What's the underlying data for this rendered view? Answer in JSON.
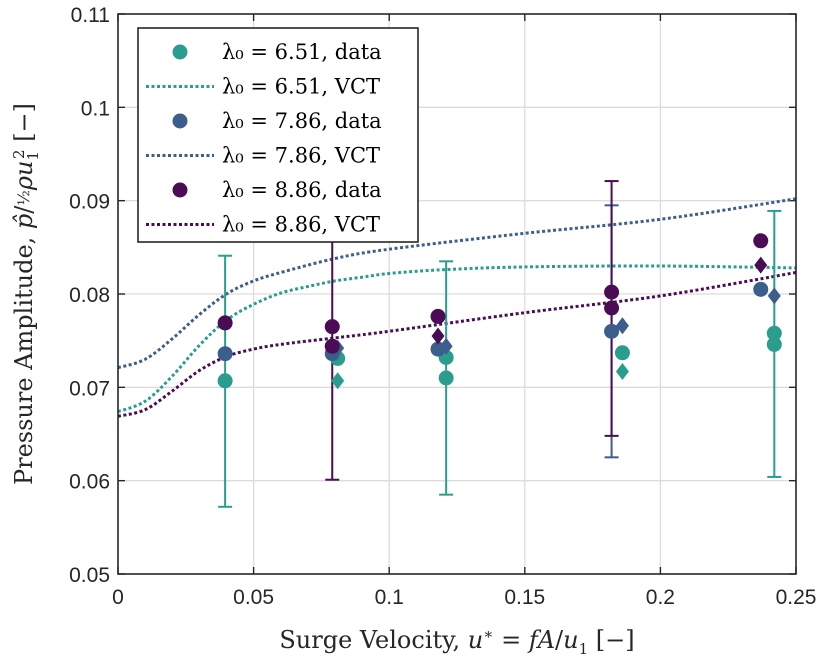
{
  "chart_data": {
    "type": "scatter",
    "title": "",
    "xlabel": "Surge Velocity, u* = fA/u₁ [−]",
    "ylabel": "Pressure Amplitude, p̂/½ρu₁² [−]",
    "xlim": [
      0,
      0.25
    ],
    "ylim": [
      0.05,
      0.11
    ],
    "xticks": [
      0,
      0.05,
      0.1,
      0.15,
      0.2,
      0.25
    ],
    "yticks": [
      0.05,
      0.06,
      0.07,
      0.08,
      0.09,
      0.1,
      0.11
    ],
    "xtick_labels": [
      "0",
      "0.05",
      "0.1",
      "0.15",
      "0.2",
      "0.25"
    ],
    "ytick_labels": [
      "0.05",
      "0.06",
      "0.07",
      "0.08",
      "0.09",
      "0.1",
      "0.11"
    ],
    "grid": true,
    "legend_position": "top-left",
    "legend": [
      {
        "label": "λ₀ = 6.51, data",
        "kind": "marker",
        "series": 0
      },
      {
        "label": "λ₀ = 6.51, VCT",
        "kind": "line",
        "series": 0
      },
      {
        "label": "λ₀ = 7.86, data",
        "kind": "marker",
        "series": 1
      },
      {
        "label": "λ₀ = 7.86, VCT",
        "kind": "line",
        "series": 1
      },
      {
        "label": "λ₀ = 8.86, data",
        "kind": "marker",
        "series": 2
      },
      {
        "label": "λ₀ = 8.86, VCT",
        "kind": "line",
        "series": 2
      }
    ],
    "series": [
      {
        "name": "λ₀ = 6.51",
        "color": "#2a9d8f",
        "circles": [
          [
            0.0395,
            0.0707
          ],
          [
            0.081,
            0.0731
          ],
          [
            0.121,
            0.0732
          ],
          [
            0.121,
            0.071
          ],
          [
            0.186,
            0.0737
          ],
          [
            0.242,
            0.0758
          ],
          [
            0.242,
            0.0746
          ]
        ],
        "diamonds": [
          [
            0.081,
            0.0707
          ],
          [
            0.186,
            0.0717
          ]
        ],
        "errorbars": [
          {
            "x": 0.0395,
            "low": 0.0572,
            "high": 0.0841
          },
          {
            "x": 0.121,
            "low": 0.0585,
            "high": 0.0835
          },
          {
            "x": 0.242,
            "low": 0.0604,
            "high": 0.0889
          }
        ],
        "vct": [
          [
            0,
            0.0674
          ],
          [
            0.01,
            0.0685
          ],
          [
            0.02,
            0.0712
          ],
          [
            0.03,
            0.0745
          ],
          [
            0.04,
            0.0772
          ],
          [
            0.05,
            0.0789
          ],
          [
            0.06,
            0.0801
          ],
          [
            0.07,
            0.0808
          ],
          [
            0.08,
            0.0814
          ],
          [
            0.09,
            0.0818
          ],
          [
            0.1,
            0.0822
          ],
          [
            0.12,
            0.0826
          ],
          [
            0.15,
            0.0829
          ],
          [
            0.2,
            0.083
          ],
          [
            0.25,
            0.0828
          ]
        ]
      },
      {
        "name": "λ₀ = 7.86",
        "color": "#3c5e8c",
        "circles": [
          [
            0.0395,
            0.0736
          ],
          [
            0.079,
            0.0736
          ],
          [
            0.118,
            0.0741
          ],
          [
            0.182,
            0.076
          ],
          [
            0.237,
            0.0805
          ]
        ],
        "diamonds": [
          [
            0.081,
            0.0742
          ],
          [
            0.121,
            0.0744
          ],
          [
            0.186,
            0.0766
          ],
          [
            0.242,
            0.0798
          ]
        ],
        "errorbars": [
          {
            "x": 0.182,
            "low": 0.0625,
            "high": 0.0895
          }
        ],
        "vct": [
          [
            0,
            0.0721
          ],
          [
            0.01,
            0.073
          ],
          [
            0.02,
            0.0752
          ],
          [
            0.03,
            0.0778
          ],
          [
            0.04,
            0.08
          ],
          [
            0.05,
            0.0814
          ],
          [
            0.06,
            0.0823
          ],
          [
            0.08,
            0.0838
          ],
          [
            0.1,
            0.0848
          ],
          [
            0.15,
            0.0865
          ],
          [
            0.2,
            0.088
          ],
          [
            0.25,
            0.0902
          ]
        ]
      },
      {
        "name": "λ₀ = 8.86",
        "color": "#4a0d55",
        "circles": [
          [
            0.0395,
            0.0769
          ],
          [
            0.079,
            0.0765
          ],
          [
            0.079,
            0.0744
          ],
          [
            0.118,
            0.0776
          ],
          [
            0.182,
            0.0802
          ],
          [
            0.182,
            0.0785
          ],
          [
            0.237,
            0.0857
          ]
        ],
        "diamonds": [
          [
            0.118,
            0.0755
          ],
          [
            0.237,
            0.0831
          ]
        ],
        "errorbars": [
          {
            "x": 0.079,
            "low": 0.0601,
            "high": 0.0905
          },
          {
            "x": 0.182,
            "low": 0.0648,
            "high": 0.0921
          }
        ],
        "vct": [
          [
            0,
            0.0669
          ],
          [
            0.01,
            0.0676
          ],
          [
            0.02,
            0.0696
          ],
          [
            0.03,
            0.0718
          ],
          [
            0.04,
            0.0733
          ],
          [
            0.05,
            0.0741
          ],
          [
            0.06,
            0.0746
          ],
          [
            0.08,
            0.0753
          ],
          [
            0.1,
            0.076
          ],
          [
            0.15,
            0.078
          ],
          [
            0.2,
            0.0798
          ],
          [
            0.25,
            0.0823
          ]
        ]
      }
    ]
  }
}
